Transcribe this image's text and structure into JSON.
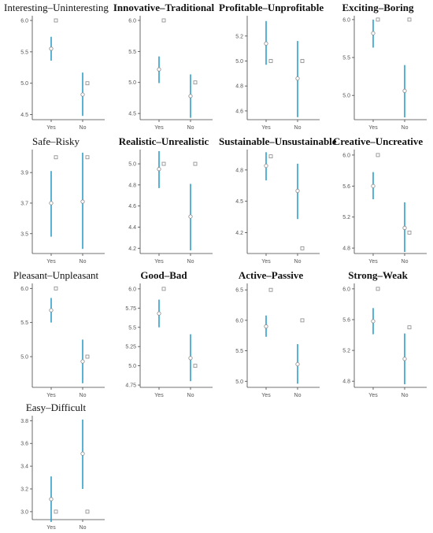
{
  "colors": {
    "interval": "#2fa0cc",
    "axis": "#444444",
    "marker_stroke": "#888888"
  },
  "chart_data": [
    {
      "type": "scatter",
      "title": "Interesting–Uninteresting",
      "title_bold": false,
      "categories": [
        "Yes",
        "No"
      ],
      "yticks": [
        4.5,
        5.0,
        5.5,
        6.0
      ],
      "ylim": [
        4.42,
        6.05
      ],
      "series": [
        {
          "marker": "circle",
          "mean": [
            5.55,
            4.82
          ],
          "lower": [
            5.36,
            4.48
          ],
          "upper": [
            5.74,
            5.17
          ]
        },
        {
          "marker": "square",
          "values": [
            6.0,
            5.0
          ]
        }
      ]
    },
    {
      "type": "scatter",
      "title": "Innovative–Traditional",
      "title_bold": true,
      "categories": [
        "Yes",
        "No"
      ],
      "yticks": [
        4.5,
        5.0,
        5.5,
        6.0
      ],
      "ylim": [
        4.4,
        6.05
      ],
      "series": [
        {
          "marker": "circle",
          "mean": [
            5.21,
            4.78
          ],
          "lower": [
            4.99,
            4.43
          ],
          "upper": [
            5.42,
            5.13
          ]
        },
        {
          "marker": "square",
          "values": [
            6.0,
            5.0
          ]
        }
      ]
    },
    {
      "type": "scatter",
      "title": "Profitable–Unprofitable",
      "title_bold": true,
      "categories": [
        "Yes",
        "No"
      ],
      "yticks": [
        4.6,
        4.8,
        5.0,
        5.2
      ],
      "ylim": [
        4.53,
        5.35
      ],
      "series": [
        {
          "marker": "circle",
          "mean": [
            5.14,
            4.86
          ],
          "lower": [
            4.97,
            4.55
          ],
          "upper": [
            5.32,
            5.16
          ]
        },
        {
          "marker": "square",
          "values": [
            5.0,
            5.0
          ]
        }
      ]
    },
    {
      "type": "scatter",
      "title": "Exciting–Boring",
      "title_bold": true,
      "categories": [
        "Yes",
        "No"
      ],
      "yticks": [
        5.0,
        5.5,
        6.0
      ],
      "ylim": [
        4.68,
        6.03
      ],
      "series": [
        {
          "marker": "circle",
          "mean": [
            5.82,
            5.06
          ],
          "lower": [
            5.63,
            4.71
          ],
          "upper": [
            6.0,
            5.4
          ]
        },
        {
          "marker": "square",
          "values": [
            6.0,
            6.0
          ]
        }
      ]
    },
    {
      "type": "scatter",
      "title": "Safe–Risky",
      "title_bold": false,
      "categories": [
        "Yes",
        "No"
      ],
      "yticks": [
        3.5,
        3.7,
        3.9
      ],
      "ylim": [
        3.37,
        4.04
      ],
      "series": [
        {
          "marker": "circle",
          "mean": [
            3.7,
            3.71
          ],
          "lower": [
            3.48,
            3.4
          ],
          "upper": [
            3.91,
            4.03
          ]
        },
        {
          "marker": "square",
          "values": [
            4.0,
            4.0
          ]
        }
      ]
    },
    {
      "type": "scatter",
      "title": "Realistic–Unrealistic",
      "title_bold": true,
      "categories": [
        "Yes",
        "No"
      ],
      "yticks": [
        4.2,
        4.4,
        4.6,
        4.8,
        5.0
      ],
      "ylim": [
        4.15,
        5.12
      ],
      "series": [
        {
          "marker": "circle",
          "mean": [
            4.95,
            4.5
          ],
          "lower": [
            4.77,
            4.18
          ],
          "upper": [
            5.12,
            4.81
          ]
        },
        {
          "marker": "square",
          "values": [
            5.0,
            5.0
          ]
        }
      ]
    },
    {
      "type": "scatter",
      "title": "Sustainable–Unsustainable",
      "title_bold": true,
      "categories": [
        "Yes",
        "No"
      ],
      "yticks": [
        4.2,
        4.5,
        4.8
      ],
      "ylim": [
        4.0,
        4.98
      ],
      "series": [
        {
          "marker": "circle",
          "mean": [
            4.84,
            4.6
          ],
          "lower": [
            4.7,
            4.33
          ],
          "upper": [
            4.97,
            4.86
          ]
        },
        {
          "marker": "square",
          "values": [
            4.93,
            4.05
          ]
        }
      ]
    },
    {
      "type": "scatter",
      "title": "Creative–Uncreative",
      "title_bold": true,
      "categories": [
        "Yes",
        "No"
      ],
      "yticks": [
        4.8,
        5.2,
        5.6,
        6.0
      ],
      "ylim": [
        4.73,
        6.05
      ],
      "series": [
        {
          "marker": "circle",
          "mean": [
            5.6,
            5.06
          ],
          "lower": [
            5.43,
            4.75
          ],
          "upper": [
            5.78,
            5.39
          ]
        },
        {
          "marker": "square",
          "values": [
            6.0,
            5.0
          ]
        }
      ]
    },
    {
      "type": "scatter",
      "title": "Pleasant–Unpleasant",
      "title_bold": false,
      "categories": [
        "Yes",
        "No"
      ],
      "yticks": [
        5.0,
        5.5,
        6.0
      ],
      "ylim": [
        4.55,
        6.05
      ],
      "series": [
        {
          "marker": "circle",
          "mean": [
            5.68,
            4.93
          ],
          "lower": [
            5.5,
            4.61
          ],
          "upper": [
            5.86,
            5.25
          ]
        },
        {
          "marker": "square",
          "values": [
            6.0,
            5.0
          ]
        }
      ]
    },
    {
      "type": "scatter",
      "title": "Good–Bad",
      "title_bold": true,
      "categories": [
        "Yes",
        "No"
      ],
      "yticks": [
        4.75,
        5.0,
        5.25,
        5.5,
        5.75,
        6.0
      ],
      "ylim": [
        4.72,
        6.05
      ],
      "series": [
        {
          "marker": "circle",
          "mean": [
            5.68,
            5.1
          ],
          "lower": [
            5.5,
            4.8
          ],
          "upper": [
            5.86,
            5.41
          ]
        },
        {
          "marker": "square",
          "values": [
            6.0,
            5.0
          ]
        }
      ]
    },
    {
      "type": "scatter",
      "title": "Active–Passive",
      "title_bold": true,
      "categories": [
        "Yes",
        "No"
      ],
      "yticks": [
        5.0,
        5.5,
        6.0,
        6.5
      ],
      "ylim": [
        4.9,
        6.58
      ],
      "series": [
        {
          "marker": "circle",
          "mean": [
            5.9,
            5.28
          ],
          "lower": [
            5.73,
            4.96
          ],
          "upper": [
            6.08,
            5.61
          ]
        },
        {
          "marker": "square",
          "values": [
            6.5,
            6.0
          ]
        }
      ]
    },
    {
      "type": "scatter",
      "title": "Strong–Weak",
      "title_bold": true,
      "categories": [
        "Yes",
        "No"
      ],
      "yticks": [
        4.8,
        5.2,
        5.6,
        6.0
      ],
      "ylim": [
        4.72,
        6.05
      ],
      "series": [
        {
          "marker": "circle",
          "mean": [
            5.58,
            5.09
          ],
          "lower": [
            5.41,
            4.76
          ],
          "upper": [
            5.75,
            5.42
          ]
        },
        {
          "marker": "square",
          "values": [
            6.0,
            5.5
          ]
        }
      ]
    },
    {
      "type": "scatter",
      "title": "Easy–Difficult",
      "title_bold": false,
      "categories": [
        "Yes",
        "No"
      ],
      "yticks": [
        3.0,
        3.2,
        3.4,
        3.6,
        3.8
      ],
      "ylim": [
        2.93,
        3.83
      ],
      "series": [
        {
          "marker": "circle",
          "mean": [
            3.11,
            3.51
          ],
          "lower": [
            2.91,
            3.2
          ],
          "upper": [
            3.31,
            3.81
          ]
        },
        {
          "marker": "square",
          "values": [
            3.0,
            3.0
          ]
        }
      ]
    }
  ]
}
